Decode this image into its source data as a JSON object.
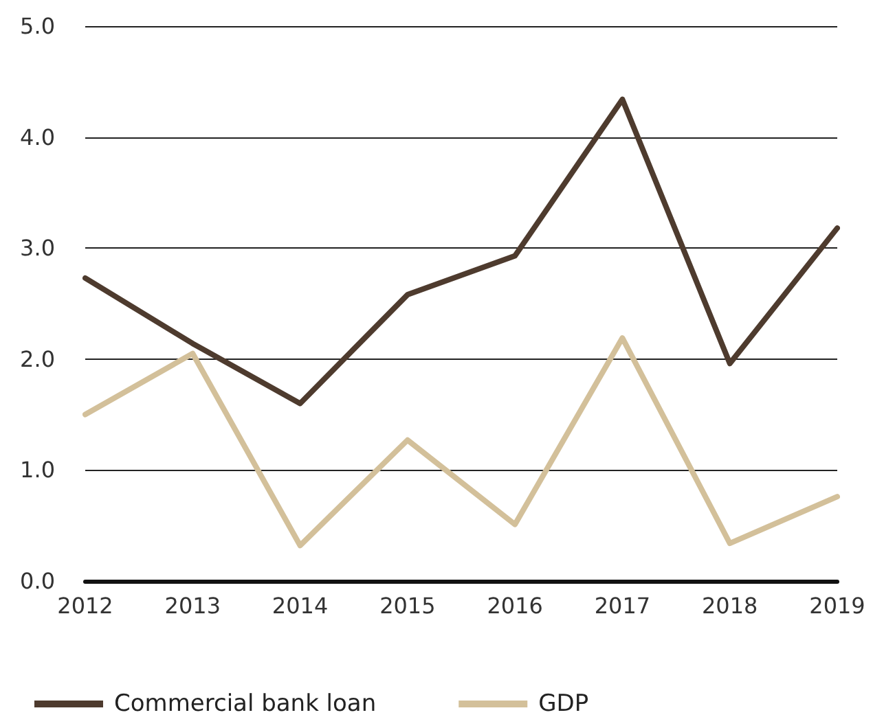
{
  "chart_data": {
    "type": "line",
    "categories": [
      "2012",
      "2013",
      "2014",
      "2015",
      "2016",
      "2017",
      "2018",
      "2019"
    ],
    "series": [
      {
        "name": "Commercial bank loan",
        "color": "#4e3b2e",
        "values": [
          2.73,
          2.14,
          1.6,
          2.58,
          2.93,
          4.34,
          1.96,
          3.18
        ]
      },
      {
        "name": "GDP",
        "color": "#d3c09a",
        "values": [
          1.5,
          2.05,
          0.32,
          1.27,
          0.51,
          2.19,
          0.34,
          0.76
        ]
      }
    ],
    "ylim": [
      0,
      5
    ],
    "yticks": [
      {
        "value": 0,
        "label": "0.0"
      },
      {
        "value": 1,
        "label": "1.0"
      },
      {
        "value": 2,
        "label": "2.0"
      },
      {
        "value": 3,
        "label": "3.0"
      },
      {
        "value": 4,
        "label": "4.0"
      },
      {
        "value": 5,
        "label": "5.0"
      }
    ],
    "grid": "y",
    "legend": "bottom",
    "marker": "none",
    "line_style": "solid"
  }
}
